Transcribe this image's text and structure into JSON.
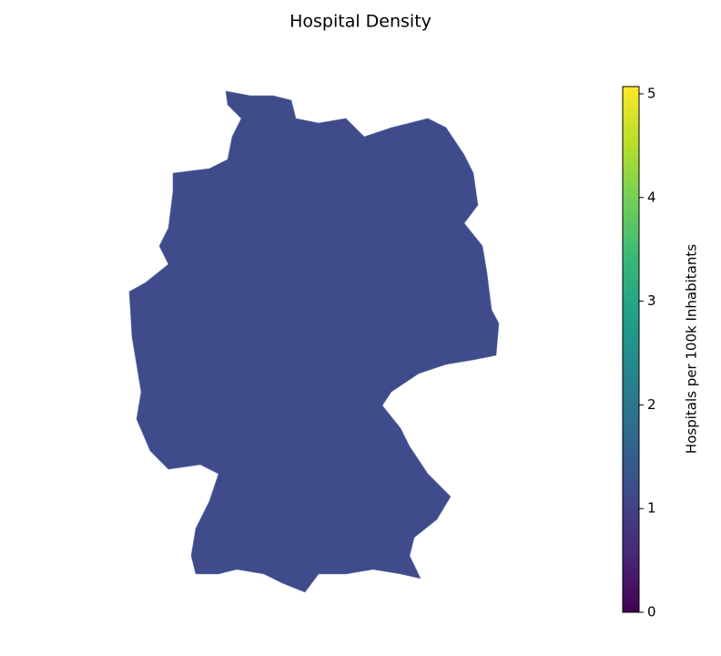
{
  "title": "Hospital Density",
  "colorbar": {
    "label": "Hospitals per 100k Inhabitants",
    "colormap": "viridis",
    "lim": [
      0,
      5.07
    ],
    "ticks": [
      0,
      1,
      2,
      3,
      4,
      5
    ]
  }
}
